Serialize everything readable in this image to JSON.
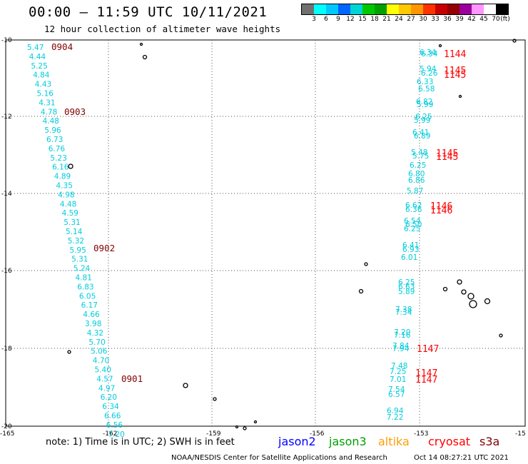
{
  "header": {
    "title": "00:00 – 11:59 UTC 10/11/2021",
    "subtitle": "12 hour collection of altimeter wave heights"
  },
  "legend": {
    "unit": "(ft)",
    "ticks": [
      "3",
      "6",
      "9",
      "12",
      "15",
      "18",
      "21",
      "24",
      "27",
      "30",
      "33",
      "36",
      "39",
      "42",
      "45",
      "70"
    ],
    "colors": [
      "#707070",
      "#00ffff",
      "#00c8ff",
      "#0064ff",
      "#00d4d4",
      "#00c800",
      "#00a000",
      "#ffff00",
      "#ffc800",
      "#ff9600",
      "#ff3200",
      "#c80000",
      "#960000",
      "#9b009b",
      "#ff96ff",
      "#ffffff",
      "#000000"
    ]
  },
  "axes": {
    "lat_labels": [
      "-10",
      "-12",
      "-14",
      "-16",
      "-18",
      "-20"
    ],
    "lon_labels": [
      "-165",
      "-162",
      "-159",
      "-156",
      "-153",
      "-15"
    ]
  },
  "tracks": [
    {
      "name": "0904",
      "time_color": "#800000",
      "value_color": "#00ccdd",
      "time_labels": [
        "0904",
        "0903",
        "0902",
        "0901"
      ],
      "values": [
        "5.47",
        "4.44",
        "5.25",
        "4.84",
        "4.43",
        "5.16",
        "4.31",
        "4.78",
        "4.48",
        "5.96",
        "6.73",
        "6.76",
        "5.23",
        "6.16",
        "4.89",
        "4.35",
        "4.98",
        "4.48",
        "4.59",
        "5.31",
        "5.14",
        "5.32",
        "5.95",
        "5.31",
        "5.24",
        "4.81",
        "6.83",
        "6.05",
        "6.17",
        "4.66",
        "3.98",
        "4.32",
        "5.70",
        "5.06",
        "4.70",
        "5.40",
        "4.57",
        "4.97",
        "6.20",
        "6.34",
        "6.66",
        "6.56",
        "7.20"
      ]
    },
    {
      "name": "1144",
      "time_color": "#ff0000",
      "value_color": "#00ccdd",
      "time_labels": [
        "1144",
        "1145",
        "1145",
        "1145",
        "1145",
        "1146",
        "1146",
        "1147",
        "1147",
        "1147"
      ],
      "values": [
        "6.34",
        "6.34",
        "5.94",
        "6.26",
        "6.33",
        "6.58",
        "6.82",
        "5.99",
        "6.25",
        "5.99",
        "6.41",
        "6.89",
        "5.48",
        "5.75",
        "6.25",
        "6.80",
        "6.86",
        "5.87",
        "6.62",
        "6.36",
        "6.54",
        "6.50",
        "6.25",
        "6.41",
        "6.93",
        "6.01",
        "6.25",
        "6.63",
        "5.89",
        "7.38",
        "7.34",
        "7.20",
        "7.16",
        "7.84",
        "7.94",
        "7.48",
        "7.25",
        "7.01",
        "7.54",
        "6.57",
        "6.94",
        "7.22"
      ]
    }
  ],
  "footer": {
    "note": "note:  1) Time is in UTC;  2) SWH is in feet",
    "satellites": [
      {
        "name": "jason2",
        "color": "#0000ff"
      },
      {
        "name": "jason3",
        "color": "#00a000"
      },
      {
        "name": "altika",
        "color": "#ffa000"
      },
      {
        "name": "cryosat",
        "color": "#ff0000"
      },
      {
        "name": "s3a",
        "color": "#800000"
      }
    ],
    "credit": "NOAA/NESDIS Center for Satellite Applications and Research",
    "timestamp": "Oct 14 08:27:21 UTC 2021"
  }
}
